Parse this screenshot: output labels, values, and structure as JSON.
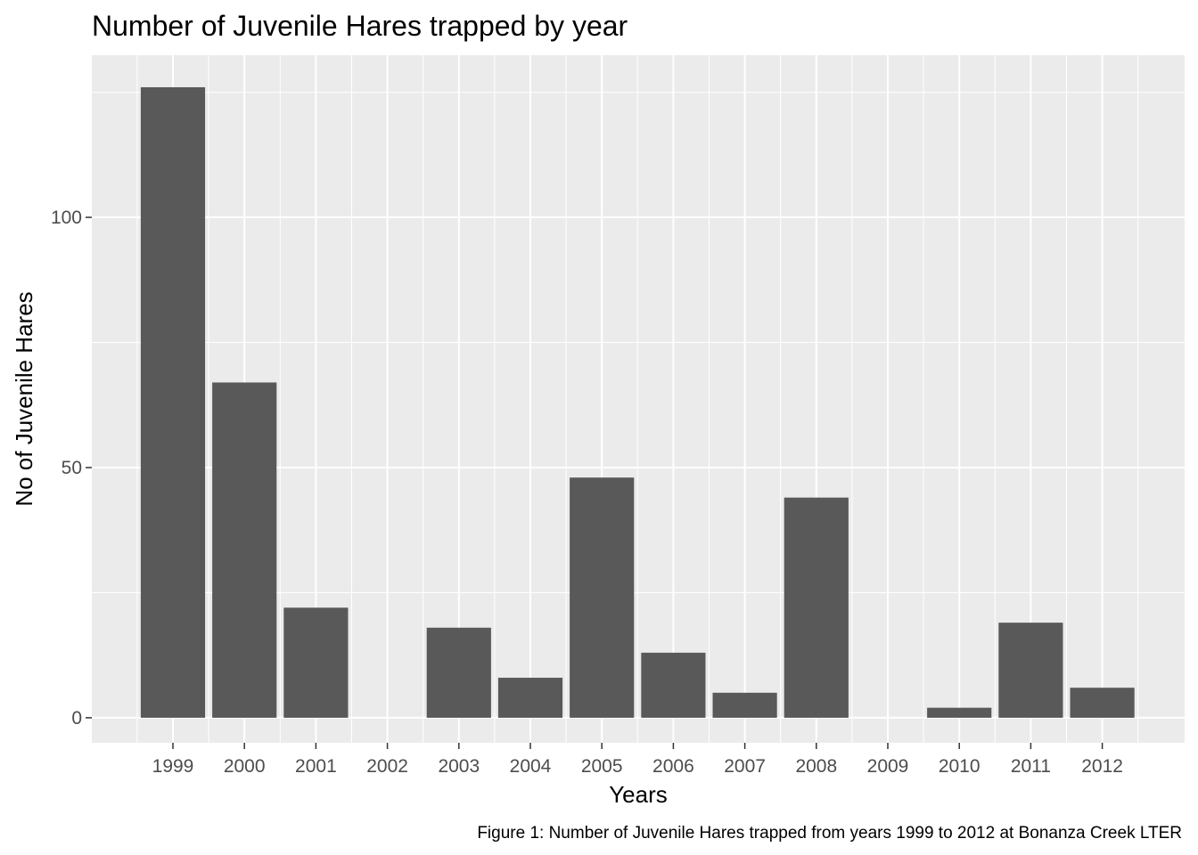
{
  "chart_data": {
    "type": "bar",
    "title": "Number of Juvenile Hares trapped by year",
    "xlabel": "Years",
    "ylabel": "No of Juvenile Hares",
    "caption": "Figure 1: Number of Juvenile Hares trapped from years 1999 to 2012 at Bonanza Creek LTER",
    "categories": [
      "1999",
      "2000",
      "2001",
      "2002",
      "2003",
      "2004",
      "2005",
      "2006",
      "2007",
      "2008",
      "2009",
      "2010",
      "2011",
      "2012"
    ],
    "values": [
      126,
      67,
      22,
      0,
      18,
      8,
      48,
      13,
      5,
      44,
      0,
      2,
      19,
      6
    ],
    "ylim": [
      -5,
      132.4
    ],
    "yticks": [
      0,
      50,
      100
    ],
    "ytick_labels": [
      "0",
      "50",
      "100"
    ],
    "grid": true,
    "legend": "none",
    "colors": {
      "bar": "#595959",
      "panel": "#ebebeb",
      "grid": "#ffffff"
    }
  }
}
